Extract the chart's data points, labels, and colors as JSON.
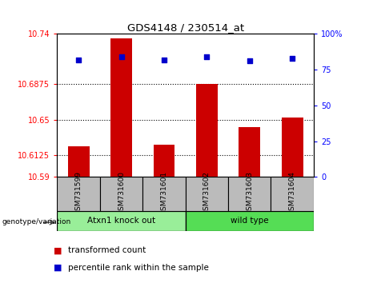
{
  "title": "GDS4148 / 230514_at",
  "samples": [
    "GSM731599",
    "GSM731600",
    "GSM731601",
    "GSM731602",
    "GSM731603",
    "GSM731604"
  ],
  "bar_values": [
    10.622,
    10.735,
    10.624,
    10.6875,
    10.642,
    10.652
  ],
  "percentile_values": [
    82,
    84,
    82,
    84,
    81,
    83
  ],
  "ylim_left": [
    10.59,
    10.74
  ],
  "ylim_right": [
    0,
    100
  ],
  "yticks_left": [
    10.59,
    10.6125,
    10.65,
    10.6875,
    10.74
  ],
  "yticks_right": [
    0,
    25,
    50,
    75,
    100
  ],
  "ytick_labels_left": [
    "10.59",
    "10.6125",
    "10.65",
    "10.6875",
    "10.74"
  ],
  "ytick_labels_right": [
    "0",
    "25",
    "50",
    "75",
    "100%"
  ],
  "hlines": [
    10.6125,
    10.65,
    10.6875
  ],
  "bar_color": "#cc0000",
  "dot_color": "#0000cc",
  "group1_label": "Atxn1 knock out",
  "group2_label": "wild type",
  "group1_color": "#99ee99",
  "group2_color": "#55dd55",
  "group_bg_color": "#bbbbbb",
  "genotype_label": "genotype/variation",
  "legend1": "transformed count",
  "legend2": "percentile rank within the sample",
  "bar_width": 0.5
}
